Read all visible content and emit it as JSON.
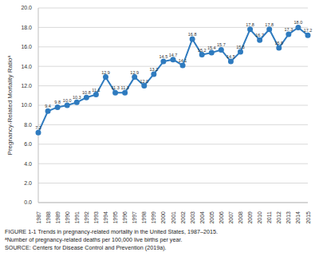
{
  "chart_data": {
    "type": "line",
    "y_label": "Pregnancy-Related Mortality Ratioᵃ",
    "categories": [
      "1987",
      "1988",
      "1989",
      "1990",
      "1991",
      "1992",
      "1993",
      "1994",
      "1995",
      "1996",
      "1997",
      "1998",
      "1999",
      "2000",
      "2001",
      "2002",
      "2003",
      "2004",
      "2005",
      "2006",
      "2007",
      "2008",
      "2009",
      "2010",
      "2011",
      "2012",
      "2013",
      "2014",
      "2015"
    ],
    "values": [
      7.2,
      9.4,
      9.8,
      10.0,
      10.3,
      10.8,
      11.1,
      12.9,
      11.3,
      11.3,
      12.9,
      12.0,
      13.2,
      14.5,
      14.7,
      14.1,
      16.8,
      15.2,
      15.4,
      15.7,
      14.5,
      15.5,
      17.8,
      16.7,
      17.8,
      15.9,
      17.3,
      18.0,
      17.2
    ],
    "value_labels": [
      "7.2",
      "9.4",
      "9.8",
      "10.0",
      "10.3",
      "10.8",
      "11.1",
      "12.9",
      "11.3",
      "11.3",
      "12.9",
      "12.0",
      "13.2",
      "14.5",
      "14.7",
      "14.1",
      "16.8",
      "15.2",
      "15.4",
      "15.7",
      "14.5",
      "15.5",
      "17.8",
      "16.7",
      "17.8",
      "15.9",
      "17.3",
      "18.0",
      "17.2"
    ],
    "color": "#2f7bbf",
    "marker": "circle",
    "line_style": "solid",
    "data_labels": true,
    "grid": true,
    "ylim": [
      0,
      20
    ],
    "yticks": [
      {
        "value": 0,
        "label": "0.0"
      },
      {
        "value": 2,
        "label": "2.0"
      },
      {
        "value": 4,
        "label": "4.0"
      },
      {
        "value": 6,
        "label": "6.0"
      },
      {
        "value": 8,
        "label": "8.0"
      },
      {
        "value": 10,
        "label": "10.0"
      },
      {
        "value": 12,
        "label": "12.0"
      },
      {
        "value": 14,
        "label": "14.0"
      },
      {
        "value": 16,
        "label": "16.0"
      },
      {
        "value": 18,
        "label": "18.0"
      },
      {
        "value": 20,
        "label": "20.0"
      }
    ],
    "annotations": [
      "FIGURE 1-1 Trends in pregnancy-related mortality in the United States, 1987–2015.",
      "ᵃNumber of pregnancy-related deaths per 100,000 live births per year.",
      "SOURCE: Centers for Disease Control and Prevention (2019a)."
    ]
  }
}
